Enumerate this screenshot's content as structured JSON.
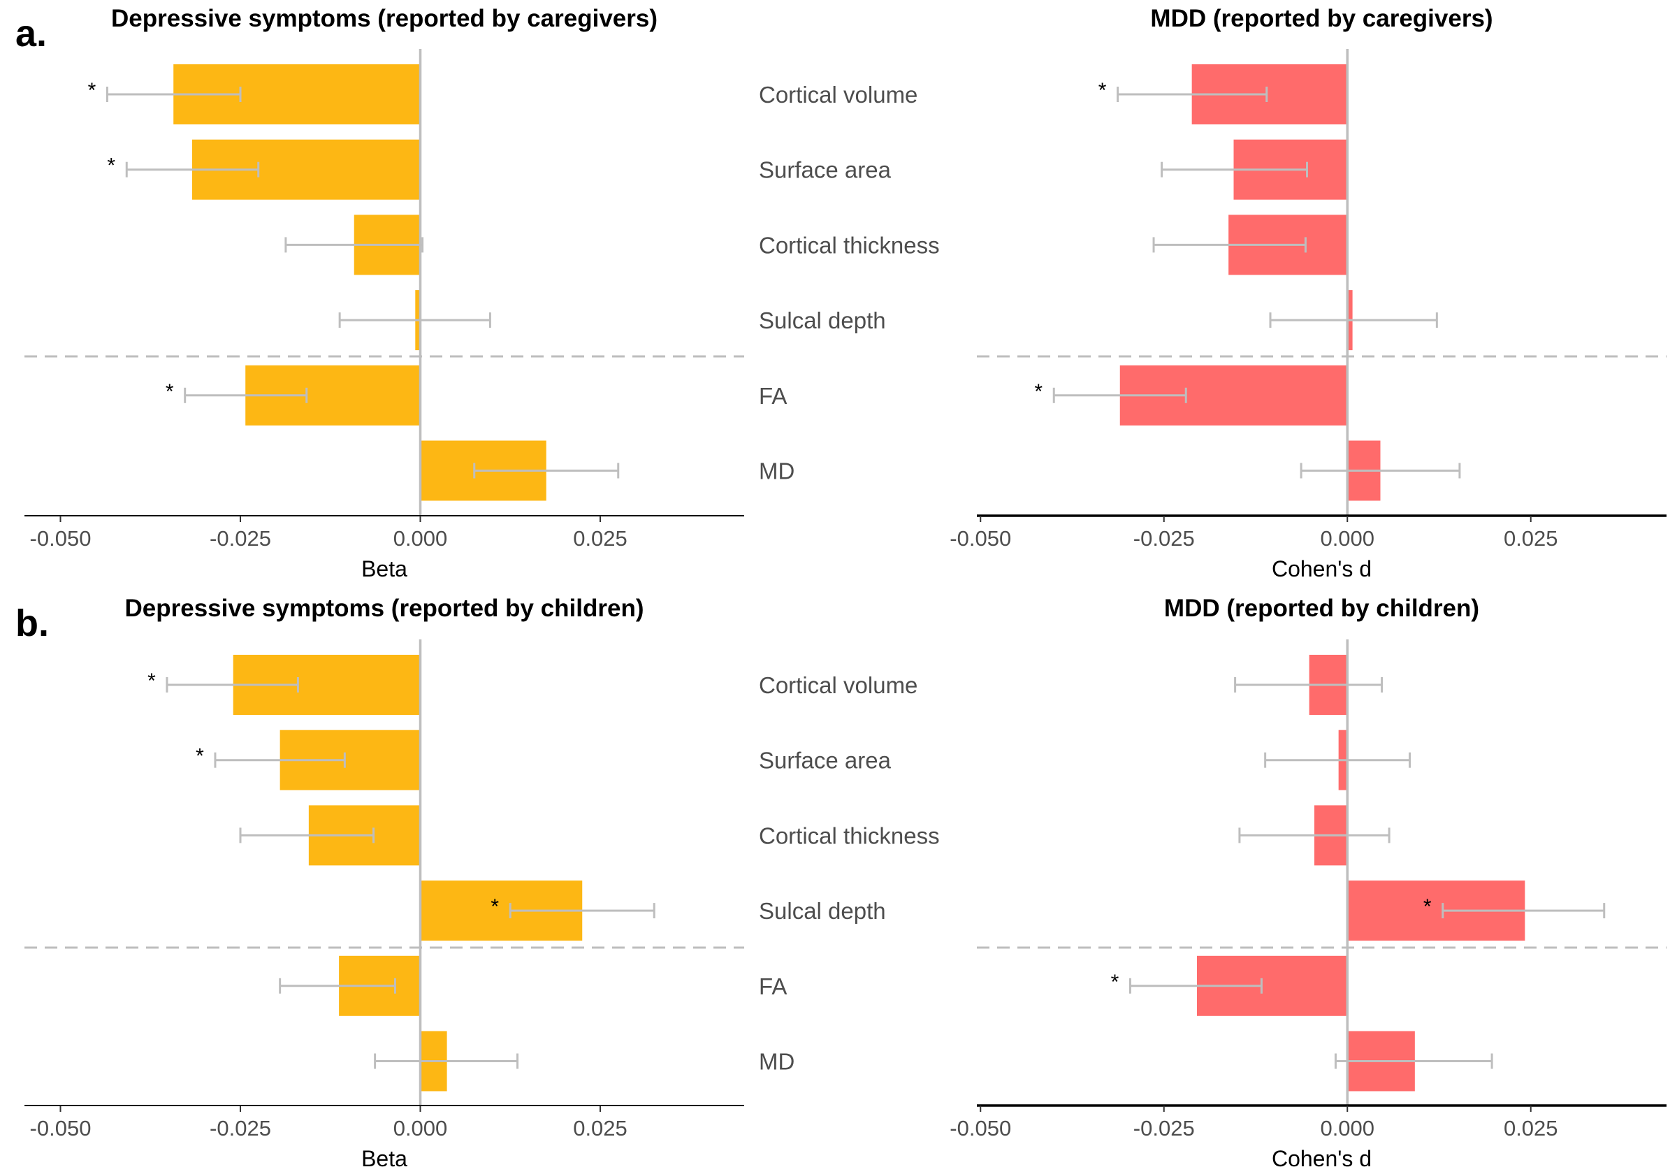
{
  "panel_letters": [
    "a.",
    "b."
  ],
  "categories": [
    "Cortical volume",
    "Surface area",
    "Cortical thickness",
    "Sulcal depth",
    "FA",
    "MD"
  ],
  "colors": {
    "beta_bar": "#FDB714",
    "d_bar": "#FF6B6B",
    "errorbar": "#BEBEBE",
    "zero_line": "#BEBEBE",
    "separator": "#BEBEBE",
    "axis": "#000000"
  },
  "chart_data": [
    {
      "type": "bar",
      "title": "Depressive symptoms (reported by caregivers)",
      "xlabel": "Beta",
      "xlim": [
        -0.055,
        0.045
      ],
      "xticks": [
        "-0.050",
        "-0.025",
        "0.000",
        "0.025"
      ],
      "categories": [
        "Cortical volume",
        "Surface area",
        "Cortical thickness",
        "Sulcal depth",
        "FA",
        "MD"
      ],
      "values": [
        -0.0343,
        -0.0317,
        -0.0092,
        -0.0007,
        -0.0243,
        0.0175
      ],
      "ci_low": [
        -0.0435,
        -0.0408,
        -0.0187,
        -0.0112,
        -0.0327,
        0.0075
      ],
      "ci_high": [
        -0.025,
        -0.0225,
        0.0003,
        0.0097,
        -0.0158,
        0.0275
      ],
      "significant": [
        true,
        true,
        false,
        false,
        true,
        false
      ]
    },
    {
      "type": "bar",
      "title": "MDD (reported by caregivers)",
      "xlabel": "Cohen's d",
      "xlim": [
        -0.0505,
        0.0435
      ],
      "xticks": [
        "-0.050",
        "-0.025",
        "0.000",
        "0.025"
      ],
      "categories": [
        "Cortical volume",
        "Surface area",
        "Cortical thickness",
        "Sulcal depth",
        "FA",
        "MD"
      ],
      "values": [
        -0.0212,
        -0.0155,
        -0.0162,
        0.0007,
        -0.031,
        0.0045
      ],
      "ci_low": [
        -0.0313,
        -0.0253,
        -0.0264,
        -0.0105,
        -0.04,
        -0.0063
      ],
      "ci_high": [
        -0.011,
        -0.0055,
        -0.0057,
        0.0122,
        -0.022,
        0.0153
      ],
      "significant": [
        true,
        false,
        false,
        false,
        true,
        false
      ]
    },
    {
      "type": "bar",
      "title": "Depressive symptoms (reported by children)",
      "xlabel": "Beta",
      "xlim": [
        -0.055,
        0.045
      ],
      "xticks": [
        "-0.050",
        "-0.025",
        "0.000",
        "0.025"
      ],
      "categories": [
        "Cortical volume",
        "Surface area",
        "Cortical thickness",
        "Sulcal depth",
        "FA",
        "MD"
      ],
      "values": [
        -0.026,
        -0.0195,
        -0.0155,
        0.0225,
        -0.0113,
        0.0037
      ],
      "ci_low": [
        -0.0352,
        -0.0285,
        -0.025,
        0.0125,
        -0.0195,
        -0.0063
      ],
      "ci_high": [
        -0.017,
        -0.0105,
        -0.0065,
        0.0325,
        -0.0035,
        0.0135
      ],
      "significant": [
        true,
        true,
        false,
        true,
        false,
        false
      ]
    },
    {
      "type": "bar",
      "title": "MDD (reported by children)",
      "xlabel": "Cohen's d",
      "xlim": [
        -0.0505,
        0.0435
      ],
      "xticks": [
        "-0.050",
        "-0.025",
        "0.000",
        "0.025"
      ],
      "categories": [
        "Cortical volume",
        "Surface area",
        "Cortical thickness",
        "Sulcal depth",
        "FA",
        "MD"
      ],
      "values": [
        -0.0052,
        -0.0012,
        -0.0045,
        0.0242,
        -0.0205,
        0.0092
      ],
      "ci_low": [
        -0.0153,
        -0.0112,
        -0.0147,
        0.013,
        -0.0296,
        -0.0016
      ],
      "ci_high": [
        0.0047,
        0.0085,
        0.0057,
        0.035,
        -0.0117,
        0.0197
      ],
      "significant": [
        false,
        false,
        false,
        true,
        true,
        false
      ]
    }
  ]
}
